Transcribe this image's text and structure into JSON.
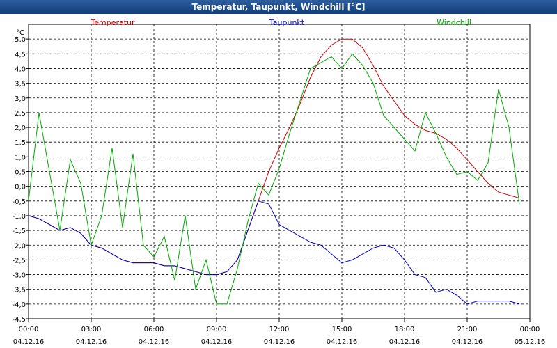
{
  "window": {
    "title": "Temperatur, Taupunkt, Windchill [°C]"
  },
  "chart_data": {
    "type": "line",
    "title": "Temperatur, Taupunkt, Windchill [°C]",
    "ylabel": "°C",
    "ylim": [
      -4.5,
      5.5
    ],
    "grid": true,
    "legend_position": "top",
    "colors": {
      "Temperatur": "#cc0000",
      "Taupunkt": "#0000cc",
      "Windchill": "#00aa00"
    },
    "y_ticks": [
      "5,0",
      "4,5",
      "4,0",
      "3,5",
      "3,0",
      "2,5",
      "2,0",
      "1,5",
      "1,0",
      "0,5",
      "0,0",
      "-0,5",
      "-1,0",
      "-1,5",
      "-2,0",
      "-2,5",
      "-3,0",
      "-3,5",
      "-4,0",
      "-4,5"
    ],
    "x_ticks": [
      {
        "time": "00:00",
        "date": "04.12.16"
      },
      {
        "time": "03:00",
        "date": "04.12.16"
      },
      {
        "time": "06:00",
        "date": "04.12.16"
      },
      {
        "time": "09:00",
        "date": "04.12.16"
      },
      {
        "time": "12:00",
        "date": "04.12.16"
      },
      {
        "time": "15:00",
        "date": "04.12.16"
      },
      {
        "time": "18:00",
        "date": "04.12.16"
      },
      {
        "time": "21:00",
        "date": "04.12.16"
      },
      {
        "time": "00:00",
        "date": "05.12.16"
      }
    ],
    "x": [
      "04.12.16 00:00",
      "04.12.16 00:30",
      "04.12.16 01:00",
      "04.12.16 01:30",
      "04.12.16 02:00",
      "04.12.16 02:30",
      "04.12.16 03:00",
      "04.12.16 03:30",
      "04.12.16 04:00",
      "04.12.16 04:30",
      "04.12.16 05:00",
      "04.12.16 05:30",
      "04.12.16 06:00",
      "04.12.16 06:30",
      "04.12.16 07:00",
      "04.12.16 07:30",
      "04.12.16 08:00",
      "04.12.16 08:30",
      "04.12.16 09:00",
      "04.12.16 09:30",
      "04.12.16 10:00",
      "04.12.16 10:30",
      "04.12.16 11:00",
      "04.12.16 11:30",
      "04.12.16 12:00",
      "04.12.16 12:30",
      "04.12.16 13:00",
      "04.12.16 13:30",
      "04.12.16 14:00",
      "04.12.16 14:30",
      "04.12.16 15:00",
      "04.12.16 15:30",
      "04.12.16 16:00",
      "04.12.16 16:30",
      "04.12.16 17:00",
      "04.12.16 17:30",
      "04.12.16 18:00",
      "04.12.16 18:30",
      "04.12.16 19:00",
      "04.12.16 19:30",
      "04.12.16 20:00",
      "04.12.16 20:30",
      "04.12.16 21:00",
      "04.12.16 21:30",
      "04.12.16 22:00",
      "04.12.16 22:30",
      "04.12.16 23:00",
      "04.12.16 23:30"
    ],
    "series": [
      {
        "name": "Temperatur",
        "values": [
          -1.0,
          -1.1,
          -1.3,
          -1.5,
          -1.4,
          -1.6,
          -2.0,
          -2.1,
          -2.3,
          -2.5,
          -2.6,
          -2.6,
          -2.6,
          -2.7,
          -2.7,
          -2.8,
          -2.9,
          -3.0,
          -3.0,
          -2.9,
          -2.5,
          -1.5,
          -0.5,
          0.5,
          1.3,
          2.0,
          2.8,
          3.7,
          4.4,
          4.8,
          5.0,
          5.0,
          4.7,
          4.1,
          3.4,
          2.9,
          2.4,
          2.1,
          1.9,
          1.8,
          1.6,
          1.3,
          0.9,
          0.5,
          0.1,
          -0.2,
          -0.3,
          -0.4
        ]
      },
      {
        "name": "Taupunkt",
        "values": [
          -1.0,
          -1.1,
          -1.3,
          -1.5,
          -1.4,
          -1.6,
          -2.0,
          -2.1,
          -2.3,
          -2.5,
          -2.6,
          -2.6,
          -2.6,
          -2.7,
          -2.7,
          -2.8,
          -2.9,
          -3.0,
          -3.0,
          -2.9,
          -2.5,
          -1.5,
          -0.5,
          -0.6,
          -1.3,
          -1.5,
          -1.7,
          -1.9,
          -2.0,
          -2.3,
          -2.6,
          -2.5,
          -2.3,
          -2.1,
          -2.0,
          -2.1,
          -2.5,
          -3.0,
          -3.1,
          -3.6,
          -3.5,
          -3.7,
          -4.0,
          -3.9,
          -3.9,
          -3.9,
          -3.9,
          -4.0
        ]
      },
      {
        "name": "Windchill",
        "values": [
          -0.5,
          2.5,
          0.5,
          -1.5,
          0.9,
          0.1,
          -2.0,
          -1.0,
          1.3,
          -1.4,
          1.1,
          -2.0,
          -2.4,
          -1.7,
          -3.2,
          -1.0,
          -3.5,
          -2.5,
          -4.0,
          -4.0,
          -2.8,
          -1.2,
          0.1,
          -0.3,
          0.6,
          1.8,
          2.9,
          4.0,
          4.2,
          4.4,
          4.0,
          4.5,
          4.1,
          3.5,
          2.4,
          2.0,
          1.6,
          1.2,
          2.5,
          1.8,
          1.0,
          0.4,
          0.5,
          0.2,
          0.8,
          3.3,
          2.0,
          -0.6
        ]
      }
    ]
  }
}
